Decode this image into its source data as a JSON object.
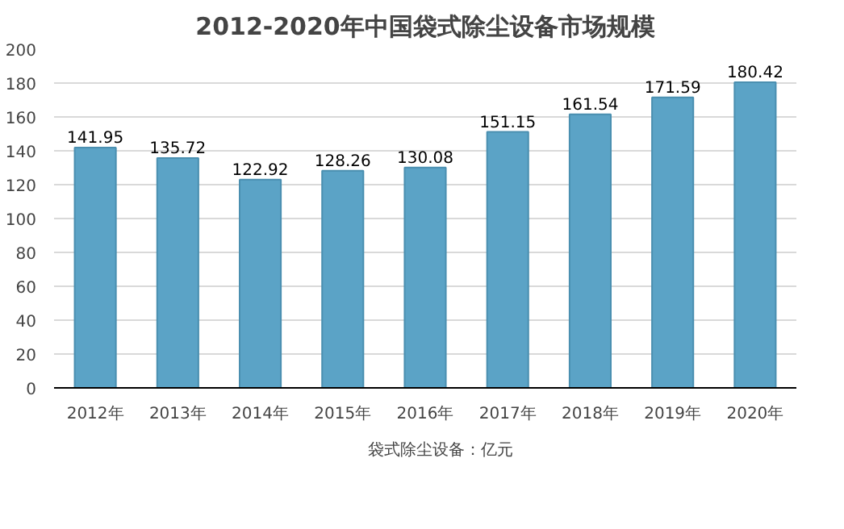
{
  "chart_data": {
    "type": "bar",
    "title": "2012-2020年中国袋式除尘设备市场规模",
    "categories": [
      "2012年",
      "2013年",
      "2014年",
      "2015年",
      "2016年",
      "2017年",
      "2018年",
      "2019年",
      "2020年"
    ],
    "series": [
      {
        "name": "袋式除尘设备：亿元",
        "color": "#5ba3c6",
        "values": [
          141.95,
          135.72,
          122.92,
          128.26,
          130.08,
          151.15,
          161.54,
          171.59,
          180.42
        ]
      }
    ],
    "ylim": [
      0,
      200
    ],
    "yticks": [
      0,
      20,
      40,
      60,
      80,
      100,
      120,
      140,
      160,
      180,
      200
    ],
    "grid": "y",
    "legend": "bottom",
    "data_labels": true
  }
}
